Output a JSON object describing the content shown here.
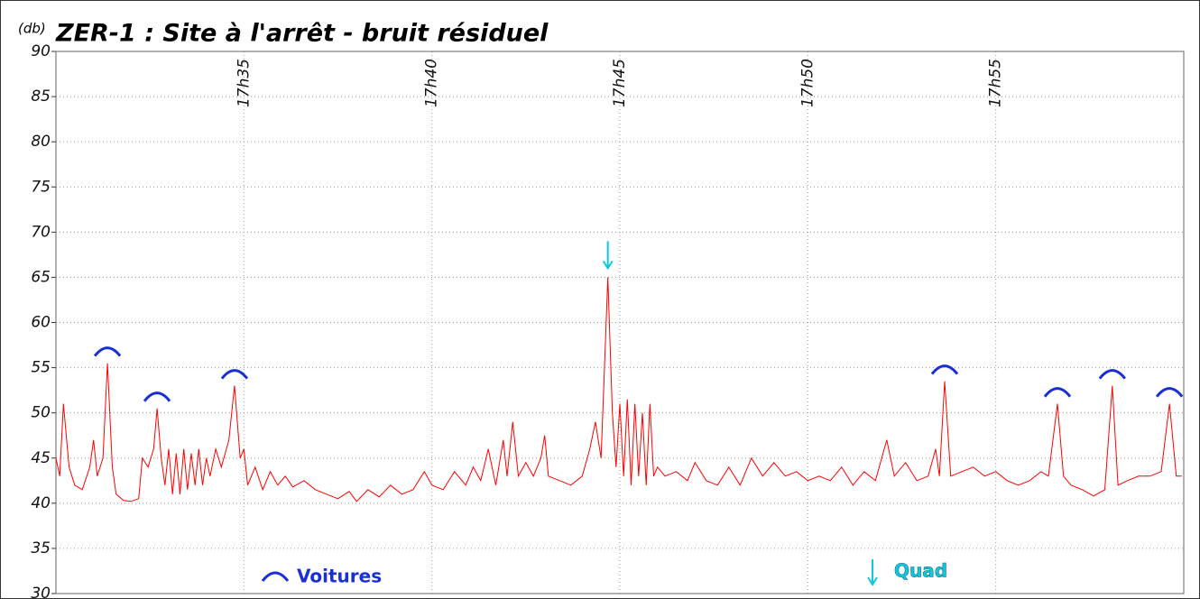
{
  "chart_data": {
    "type": "line",
    "title": "ZER-1 : Site à l'arrêt - bruit résiduel",
    "y_unit": "(db)",
    "color": "#ff0000",
    "grid": true,
    "xlim": [
      30,
      60
    ],
    "xticks": [
      {
        "value": 35,
        "label": "17h35"
      },
      {
        "value": 40,
        "label": "17h40"
      },
      {
        "value": 45,
        "label": "17h45"
      },
      {
        "value": 50,
        "label": "17h50"
      },
      {
        "value": 55,
        "label": "17h55"
      }
    ],
    "ylim": [
      30,
      90
    ],
    "yticks": [
      30,
      35,
      40,
      45,
      50,
      55,
      60,
      65,
      70,
      75,
      80,
      85,
      90
    ],
    "x": [
      30.0,
      30.1,
      30.2,
      30.35,
      30.5,
      30.7,
      30.9,
      31.0,
      31.1,
      31.25,
      31.37,
      31.5,
      31.6,
      31.8,
      32.0,
      32.2,
      32.3,
      32.45,
      32.6,
      32.69,
      32.8,
      32.9,
      33.0,
      33.1,
      33.2,
      33.3,
      33.4,
      33.5,
      33.6,
      33.7,
      33.8,
      33.9,
      34.0,
      34.1,
      34.25,
      34.4,
      34.6,
      34.75,
      34.9,
      35.0,
      35.1,
      35.3,
      35.5,
      35.7,
      35.9,
      36.1,
      36.3,
      36.6,
      36.9,
      37.2,
      37.5,
      37.8,
      38.0,
      38.3,
      38.6,
      38.9,
      39.2,
      39.5,
      39.8,
      40.0,
      40.3,
      40.6,
      40.9,
      41.1,
      41.3,
      41.5,
      41.7,
      41.9,
      42.0,
      42.15,
      42.3,
      42.5,
      42.7,
      42.9,
      43.0,
      43.1,
      43.4,
      43.7,
      44.0,
      44.2,
      44.35,
      44.5,
      44.68,
      44.8,
      44.9,
      45.0,
      45.1,
      45.2,
      45.3,
      45.4,
      45.5,
      45.6,
      45.7,
      45.8,
      45.9,
      46.0,
      46.2,
      46.5,
      46.8,
      47.0,
      47.3,
      47.6,
      47.9,
      48.2,
      48.5,
      48.8,
      49.1,
      49.4,
      49.7,
      50.0,
      50.3,
      50.6,
      50.9,
      51.2,
      51.5,
      51.8,
      52.1,
      52.3,
      52.6,
      52.9,
      53.2,
      53.4,
      53.5,
      53.64,
      53.8,
      54.1,
      54.4,
      54.7,
      55.0,
      55.3,
      55.6,
      55.9,
      56.2,
      56.4,
      56.64,
      56.8,
      57.0,
      57.3,
      57.6,
      57.9,
      58.1,
      58.25,
      58.5,
      58.8,
      59.1,
      59.4,
      59.62,
      59.8,
      59.95
    ],
    "values": [
      45,
      43,
      51,
      44,
      42,
      41.5,
      44,
      47,
      43,
      45,
      55.5,
      44,
      41,
      40.3,
      40.2,
      40.5,
      45,
      44,
      46,
      50.5,
      45,
      42,
      46,
      41,
      45.5,
      41,
      46,
      41.5,
      45.5,
      42,
      46,
      42,
      45,
      43,
      46,
      44,
      47,
      53,
      45,
      46,
      42,
      44,
      41.5,
      43.5,
      42,
      43,
      41.8,
      42.5,
      41.5,
      41,
      40.5,
      41.3,
      40.2,
      41.5,
      40.7,
      42,
      41,
      41.5,
      43.5,
      42,
      41.5,
      43.5,
      42,
      44,
      42.5,
      46,
      42,
      47,
      43,
      49,
      43,
      44.5,
      43,
      45,
      47.5,
      43,
      42.5,
      42,
      43,
      46,
      49,
      45,
      65,
      50,
      44,
      51,
      43,
      51.5,
      42,
      51,
      43,
      50,
      42,
      51,
      43,
      44,
      43,
      43.5,
      42.5,
      44.5,
      42.5,
      42,
      44,
      42,
      45,
      43,
      44.5,
      43,
      43.5,
      42.5,
      43,
      42.5,
      44,
      42,
      43.5,
      42.5,
      47,
      43,
      44.5,
      42.5,
      43,
      46,
      43,
      53.5,
      43,
      43.5,
      44,
      43,
      43.5,
      42.5,
      42,
      42.5,
      43.5,
      43,
      51,
      43,
      42,
      41.5,
      40.8,
      41.5,
      53,
      42,
      42.5,
      43,
      43,
      43.5,
      51,
      43,
      43
    ],
    "legend": [
      {
        "name": "Voitures",
        "color": "#1a2fd8",
        "marker": "arc",
        "x": [
          31.37,
          32.69,
          34.75,
          53.64,
          56.64,
          58.1,
          59.62
        ]
      },
      {
        "name": "Quad",
        "color": "#10c8dc",
        "marker": "arrow",
        "x": [
          44.68
        ]
      }
    ]
  }
}
